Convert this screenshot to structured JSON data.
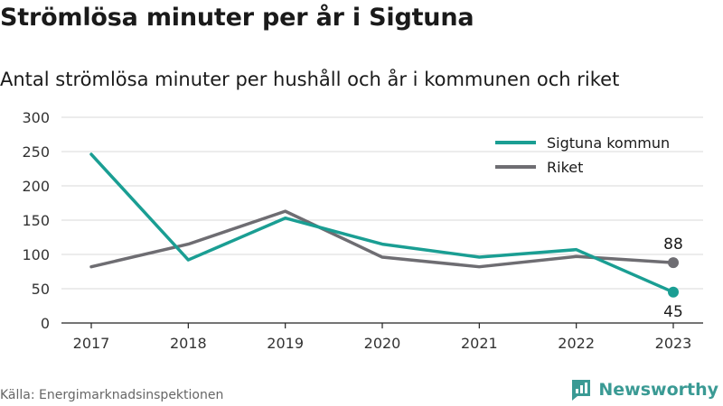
{
  "header": {
    "title": "Strömlösa minuter per år i Sigtuna",
    "subtitle": "Antal strömlösa minuter per hushåll och år i kommunen och riket"
  },
  "footer": {
    "source": "Källa: Energimarknadsinspektionen",
    "brand": "Newsworthy",
    "brand_icon": "bar-chart-logo-icon"
  },
  "colors": {
    "sigtuna": "#1a9e93",
    "riket": "#6e6d72",
    "grid": "#d9d9d9",
    "brand": "#3a9a94"
  },
  "chart_data": {
    "type": "line",
    "x": [
      "2017",
      "2018",
      "2019",
      "2020",
      "2021",
      "2022",
      "2023"
    ],
    "ylim": [
      0,
      300
    ],
    "yticks": [
      0,
      50,
      100,
      150,
      200,
      250,
      300
    ],
    "grid": true,
    "legend_position": "top-right",
    "series": [
      {
        "name": "Sigtuna kommun",
        "color": "#1a9e93",
        "values": [
          246,
          92,
          153,
          115,
          96,
          107,
          45
        ],
        "end_label": "45"
      },
      {
        "name": "Riket",
        "color": "#6e6d72",
        "values": [
          82,
          115,
          163,
          96,
          82,
          97,
          88
        ],
        "end_label": "88"
      }
    ]
  }
}
